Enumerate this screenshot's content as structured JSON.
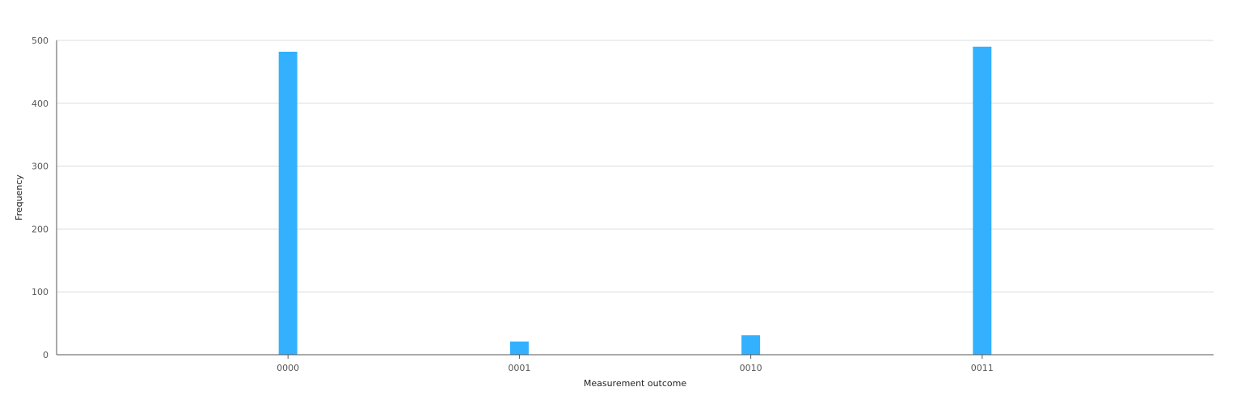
{
  "chart_data": {
    "type": "bar",
    "title": "",
    "xlabel": "Measurement outcome",
    "ylabel": "Frequency",
    "categories": [
      "0000",
      "0001",
      "0010",
      "0011"
    ],
    "values": [
      482,
      21,
      31,
      490
    ],
    "ylim": [
      0,
      500
    ],
    "yticks": [
      "0",
      "100",
      "200",
      "300",
      "400",
      "500"
    ],
    "grid": true,
    "legend": "none",
    "bar_color": "#33b1ff"
  }
}
